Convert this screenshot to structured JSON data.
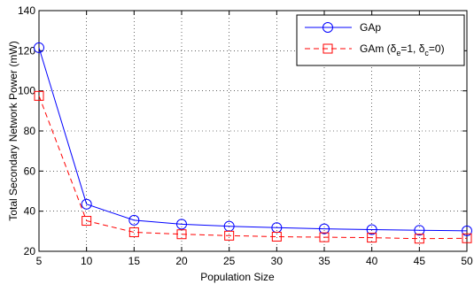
{
  "chart_data": {
    "type": "line",
    "title": "",
    "xlabel": "Population Size",
    "ylabel": "Total Secondary Network Power (mW)",
    "xlim": [
      5,
      50
    ],
    "ylim": [
      20,
      140
    ],
    "xticks": [
      5,
      10,
      15,
      20,
      25,
      30,
      35,
      40,
      45,
      50
    ],
    "yticks": [
      20,
      40,
      60,
      80,
      100,
      120,
      140
    ],
    "grid": true,
    "legend_position": "top-right",
    "x": [
      5,
      10,
      15,
      20,
      25,
      30,
      35,
      40,
      45,
      50
    ],
    "series": [
      {
        "name": "GAp",
        "color": "#0000ff",
        "line_style": "solid",
        "marker": "circle",
        "values": [
          121.5,
          43.5,
          35.5,
          33.5,
          32.5,
          31.8,
          31.2,
          30.8,
          30.5,
          30.2
        ]
      },
      {
        "name": "GAm (δe=1, δc=0)",
        "color": "#ff0000",
        "line_style": "dashed",
        "marker": "square",
        "values": [
          97.5,
          35.2,
          29.5,
          28.5,
          27.8,
          27.3,
          27.0,
          26.8,
          26.3,
          26.5
        ]
      }
    ],
    "legend": {
      "entries": [
        {
          "text": "GAp"
        },
        {
          "base": "GAm (δ",
          "sub1": "e",
          "mid": "=1, δ",
          "sub2": "c",
          "tail": "=0)"
        }
      ]
    }
  }
}
